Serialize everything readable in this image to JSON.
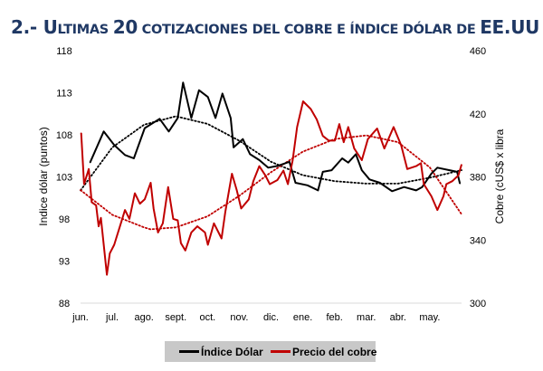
{
  "title": {
    "prefix": "2.- U",
    "small1": "LTIMAS ",
    "num": "20",
    "small2": " COTIZACIONES DEL COBRE E ÍNDICE DÓLAR DE ",
    "suffix": "EE.UU"
  },
  "chart_data": {
    "type": "line",
    "title": "2.- Ultimas 20 cotizaciones del cobre e índice dólar de EE.UU",
    "xlabel": "",
    "ylabel": "Indice dólar (puntos)",
    "y2label": "Cobre (cUS$ x libra",
    "x_unit": "months since start of jun.",
    "xlim": [
      0,
      12
    ],
    "ylim": [
      88,
      118
    ],
    "y2lim": [
      300,
      460
    ],
    "xticks": [
      "jun.",
      "jul.",
      "ago.",
      "sept.",
      "oct.",
      "nov.",
      "dic.",
      "ene.",
      "feb.",
      "mar.",
      "abr.",
      "may."
    ],
    "yticks": [
      "88",
      "93",
      "98",
      "103",
      "108",
      "113",
      "118"
    ],
    "y2ticks": [
      "300",
      "340",
      "380",
      "420",
      "460"
    ],
    "legend_position": "bottom",
    "colors": {
      "dolar": "#000000",
      "cobre": "#c00000",
      "baseline": "#d9d9d9",
      "legend_bg": "#c8c8c8",
      "title": "#1f3864"
    },
    "series": [
      {
        "name": "Índice Dólar",
        "axis": "left",
        "color": "#000000",
        "points": [
          [
            0.3,
            104.7
          ],
          [
            0.73,
            108.4
          ],
          [
            1.06,
            106.8
          ],
          [
            1.4,
            105.6
          ],
          [
            1.68,
            105.2
          ],
          [
            2.02,
            108.8
          ],
          [
            2.49,
            109.9
          ],
          [
            2.78,
            108.4
          ],
          [
            3.06,
            110.0
          ],
          [
            3.23,
            114.2
          ],
          [
            3.49,
            110.0
          ],
          [
            3.73,
            113.3
          ],
          [
            4.01,
            112.5
          ],
          [
            4.25,
            110.0
          ],
          [
            4.47,
            112.9
          ],
          [
            4.73,
            110.0
          ],
          [
            4.82,
            106.5
          ],
          [
            5.11,
            107.5
          ],
          [
            5.34,
            105.7
          ],
          [
            5.63,
            105.0
          ],
          [
            5.91,
            104.1
          ],
          [
            6.2,
            104.3
          ],
          [
            6.58,
            104.8
          ],
          [
            6.77,
            102.3
          ],
          [
            7.15,
            102.0
          ],
          [
            7.48,
            101.4
          ],
          [
            7.63,
            103.6
          ],
          [
            7.91,
            103.8
          ],
          [
            8.24,
            105.2
          ],
          [
            8.43,
            104.7
          ],
          [
            8.67,
            105.7
          ],
          [
            8.86,
            103.8
          ],
          [
            9.1,
            102.7
          ],
          [
            9.43,
            102.3
          ],
          [
            9.81,
            101.3
          ],
          [
            10.19,
            101.8
          ],
          [
            10.57,
            101.4
          ],
          [
            10.76,
            101.8
          ],
          [
            11.05,
            103.4
          ],
          [
            11.24,
            104.1
          ],
          [
            11.62,
            103.8
          ],
          [
            11.86,
            103.6
          ],
          [
            11.95,
            102.2
          ]
        ]
      },
      {
        "name": "Precio del cobre",
        "axis": "right",
        "color": "#c00000",
        "points": [
          [
            0.02,
            407.8
          ],
          [
            0.11,
            375.4
          ],
          [
            0.26,
            385
          ],
          [
            0.35,
            364
          ],
          [
            0.49,
            362
          ],
          [
            0.57,
            348.7
          ],
          [
            0.64,
            354
          ],
          [
            0.83,
            318
          ],
          [
            0.92,
            331.5
          ],
          [
            1.06,
            337
          ],
          [
            1.21,
            346.8
          ],
          [
            1.4,
            359
          ],
          [
            1.54,
            353.4
          ],
          [
            1.71,
            369.6
          ],
          [
            1.87,
            363
          ],
          [
            2.02,
            365.8
          ],
          [
            2.21,
            376.3
          ],
          [
            2.3,
            360
          ],
          [
            2.44,
            344.8
          ],
          [
            2.59,
            350.6
          ],
          [
            2.76,
            373.5
          ],
          [
            2.92,
            353.4
          ],
          [
            3.06,
            352.5
          ],
          [
            3.16,
            338
          ],
          [
            3.3,
            333.4
          ],
          [
            3.49,
            344.8
          ],
          [
            3.68,
            348.7
          ],
          [
            3.92,
            344.8
          ],
          [
            4.01,
            337
          ],
          [
            4.2,
            350.6
          ],
          [
            4.44,
            341
          ],
          [
            4.56,
            358
          ],
          [
            4.77,
            382
          ],
          [
            4.92,
            371.6
          ],
          [
            5.06,
            360
          ],
          [
            5.3,
            365.8
          ],
          [
            5.44,
            377.3
          ],
          [
            5.63,
            386.8
          ],
          [
            5.82,
            381
          ],
          [
            5.96,
            375.4
          ],
          [
            6.2,
            378
          ],
          [
            6.39,
            384
          ],
          [
            6.53,
            375.4
          ],
          [
            6.68,
            390.6
          ],
          [
            6.82,
            411.6
          ],
          [
            7.01,
            427.9
          ],
          [
            7.25,
            423
          ],
          [
            7.44,
            416.4
          ],
          [
            7.63,
            406
          ],
          [
            7.82,
            403
          ],
          [
            8.01,
            403
          ],
          [
            8.15,
            413.5
          ],
          [
            8.29,
            402
          ],
          [
            8.43,
            411.6
          ],
          [
            8.62,
            398
          ],
          [
            8.86,
            390.6
          ],
          [
            9.05,
            404
          ],
          [
            9.34,
            410.7
          ],
          [
            9.57,
            398
          ],
          [
            9.86,
            411.6
          ],
          [
            10.1,
            400
          ],
          [
            10.29,
            385
          ],
          [
            10.57,
            386.8
          ],
          [
            10.72,
            388.7
          ],
          [
            10.81,
            375.4
          ],
          [
            11.05,
            367.7
          ],
          [
            11.24,
            359
          ],
          [
            11.43,
            367.7
          ],
          [
            11.52,
            375.4
          ],
          [
            11.71,
            377.3
          ],
          [
            11.9,
            381
          ],
          [
            12.0,
            387.8
          ]
        ]
      }
    ],
    "trendlines": [
      {
        "name": "Tendencia Índice Dólar",
        "axis": "left",
        "color": "#000000",
        "points": [
          [
            0,
            101.4
          ],
          [
            1,
            106.5
          ],
          [
            2,
            109.2
          ],
          [
            3,
            110.2
          ],
          [
            4,
            109.3
          ],
          [
            5,
            107.3
          ],
          [
            6,
            104.8
          ],
          [
            7,
            103.2
          ],
          [
            8,
            102.5
          ],
          [
            9,
            102.2
          ],
          [
            10,
            102.2
          ],
          [
            11,
            102.9
          ],
          [
            12,
            103.8
          ]
        ]
      },
      {
        "name": "Tendencia Precio del cobre",
        "axis": "right",
        "color": "#c00000",
        "points": [
          [
            0,
            371.6
          ],
          [
            1,
            356
          ],
          [
            2,
            348
          ],
          [
            2.2,
            346.8
          ],
          [
            3,
            348
          ],
          [
            4,
            355
          ],
          [
            5,
            368
          ],
          [
            6,
            383
          ],
          [
            7,
            396
          ],
          [
            8,
            404
          ],
          [
            9,
            406.3
          ],
          [
            10,
            402
          ],
          [
            11,
            386
          ],
          [
            12,
            356.3
          ]
        ]
      }
    ]
  }
}
